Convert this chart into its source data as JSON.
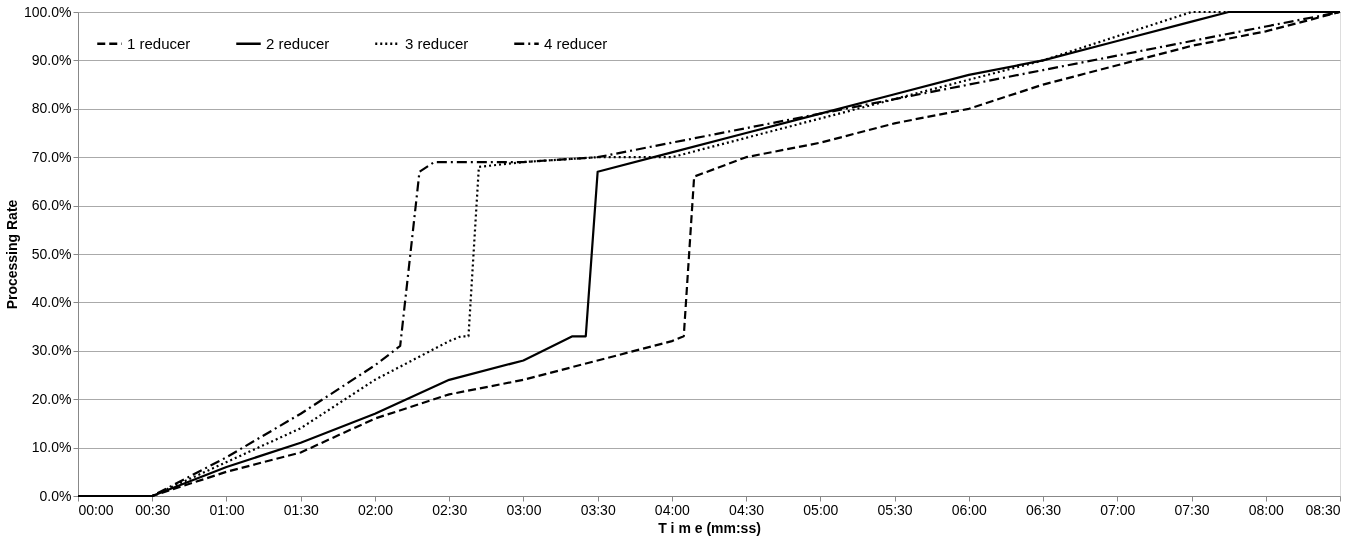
{
  "chart_data": {
    "type": "line",
    "xlabel": "T i m e (mm:ss)",
    "ylabel": "Processing Rate",
    "xlim": [
      0,
      8.5
    ],
    "ylim": [
      0,
      100
    ],
    "xticks": [
      {
        "value": 0,
        "label": "00:00"
      },
      {
        "value": 0.5,
        "label": "00:30"
      },
      {
        "value": 1,
        "label": "01:00"
      },
      {
        "value": 1.5,
        "label": "01:30"
      },
      {
        "value": 2,
        "label": "02:00"
      },
      {
        "value": 2.5,
        "label": "02:30"
      },
      {
        "value": 3,
        "label": "03:00"
      },
      {
        "value": 3.5,
        "label": "03:30"
      },
      {
        "value": 4,
        "label": "04:00"
      },
      {
        "value": 4.5,
        "label": "04:30"
      },
      {
        "value": 5,
        "label": "05:00"
      },
      {
        "value": 5.5,
        "label": "05:30"
      },
      {
        "value": 6,
        "label": "06:00"
      },
      {
        "value": 6.5,
        "label": "06:30"
      },
      {
        "value": 7,
        "label": "07:00"
      },
      {
        "value": 7.5,
        "label": "07:30"
      },
      {
        "value": 8,
        "label": "08:00"
      },
      {
        "value": 8.5,
        "label": "08:30"
      }
    ],
    "yticks": [
      {
        "value": 0,
        "label": "0.0%"
      },
      {
        "value": 10,
        "label": "10.0%"
      },
      {
        "value": 20,
        "label": "20.0%"
      },
      {
        "value": 30,
        "label": "30.0%"
      },
      {
        "value": 40,
        "label": "40.0%"
      },
      {
        "value": 50,
        "label": "50.0%"
      },
      {
        "value": 60,
        "label": "60.0%"
      },
      {
        "value": 70,
        "label": "70.0%"
      },
      {
        "value": 80,
        "label": "80.0%"
      },
      {
        "value": 90,
        "label": "90.0%"
      },
      {
        "value": 100,
        "label": "100.0%"
      }
    ],
    "grid": "y",
    "legend": "top left",
    "marker": "none",
    "series": [
      {
        "name": "1 reducer",
        "color": "#000000",
        "line_style": "dashed",
        "x": [
          0,
          0.5,
          1,
          1.5,
          2,
          2.5,
          3,
          3.5,
          4,
          4.08,
          4.15,
          4.5,
          5,
          5.5,
          6,
          6.5,
          7,
          7.5,
          8,
          8.5
        ],
        "values": [
          0,
          0,
          5,
          9,
          16,
          21,
          24,
          28,
          32,
          33,
          66,
          70,
          73,
          77,
          80,
          85,
          89,
          93,
          96,
          100
        ]
      },
      {
        "name": "2 reducer",
        "color": "#000000",
        "line_style": "solid",
        "x": [
          0,
          0.5,
          1,
          1.5,
          2,
          2.5,
          3,
          3.33,
          3.42,
          3.5,
          4,
          4.5,
          5,
          5.5,
          6,
          6.5,
          7,
          7.5,
          7.75,
          8.5
        ],
        "values": [
          0,
          0,
          6,
          11,
          17,
          24,
          28,
          33,
          33,
          67,
          71,
          75,
          79,
          83,
          87,
          90,
          94,
          98,
          100,
          100
        ]
      },
      {
        "name": "3 reducer",
        "color": "#000000",
        "line_style": "dotted",
        "x": [
          0,
          0.5,
          1,
          1.5,
          2,
          2.5,
          2.58,
          2.63,
          2.7,
          3,
          3.5,
          4,
          4.5,
          5,
          5.5,
          6,
          6.5,
          7,
          7.5,
          8.5
        ],
        "values": [
          0,
          0,
          7,
          14,
          24,
          32,
          33,
          33,
          68,
          69,
          70,
          70,
          74,
          78,
          82,
          86,
          90,
          95,
          100,
          100
        ]
      },
      {
        "name": "4 reducer",
        "color": "#000000",
        "line_style": "dashdot",
        "x": [
          0,
          0.5,
          1,
          1.5,
          2,
          2.17,
          2.3,
          2.4,
          3,
          3.5,
          4,
          4.5,
          5,
          5.5,
          6,
          6.5,
          7,
          7.5,
          8,
          8.5
        ],
        "values": [
          0,
          0,
          8,
          17,
          27,
          31,
          67,
          69,
          69,
          70,
          73,
          76,
          79,
          82,
          85,
          88,
          91,
          94,
          97,
          100
        ]
      }
    ]
  }
}
